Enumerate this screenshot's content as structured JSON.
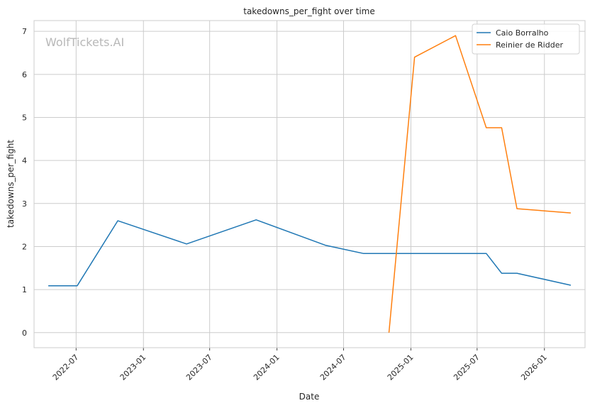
{
  "chart_data": {
    "type": "line",
    "title": "takedowns_per_fight over time",
    "xlabel": "Date",
    "ylabel": "takedowns_per_fight",
    "watermark": "WolfTickets.AI",
    "xlim": [
      "2022-03-08",
      "2026-04-22"
    ],
    "ylim": [
      -0.35,
      7.25
    ],
    "x_ticks": [
      "2022-07",
      "2023-01",
      "2023-07",
      "2024-01",
      "2024-07",
      "2025-01",
      "2025-07",
      "2026-01"
    ],
    "y_ticks": [
      0,
      1,
      2,
      3,
      4,
      5,
      6,
      7
    ],
    "grid": true,
    "legend": "top-right",
    "series": [
      {
        "name": "Caio Borralho",
        "color": "#1f77b4",
        "points": [
          {
            "x": "2022-04-16",
            "y": 1.09
          },
          {
            "x": "2022-07-04",
            "y": 1.09
          },
          {
            "x": "2022-10-23",
            "y": 2.6
          },
          {
            "x": "2023-04-29",
            "y": 2.06
          },
          {
            "x": "2023-11-05",
            "y": 2.62
          },
          {
            "x": "2024-05-12",
            "y": 2.03
          },
          {
            "x": "2024-08-24",
            "y": 1.84
          },
          {
            "x": "2025-07-26",
            "y": 1.84
          },
          {
            "x": "2025-09-06",
            "y": 1.38
          },
          {
            "x": "2025-10-18",
            "y": 1.38
          },
          {
            "x": "2026-03-14",
            "y": 1.1
          }
        ]
      },
      {
        "name": "Reinier de Ridder",
        "color": "#ff7f0e",
        "points": [
          {
            "x": "2024-11-02",
            "y": 0
          },
          {
            "x": "2025-01-11",
            "y": 6.4
          },
          {
            "x": "2025-05-03",
            "y": 6.9
          },
          {
            "x": "2025-07-26",
            "y": 4.76
          },
          {
            "x": "2025-09-06",
            "y": 4.76
          },
          {
            "x": "2025-10-18",
            "y": 2.88
          },
          {
            "x": "2026-03-14",
            "y": 2.78
          }
        ]
      }
    ]
  }
}
